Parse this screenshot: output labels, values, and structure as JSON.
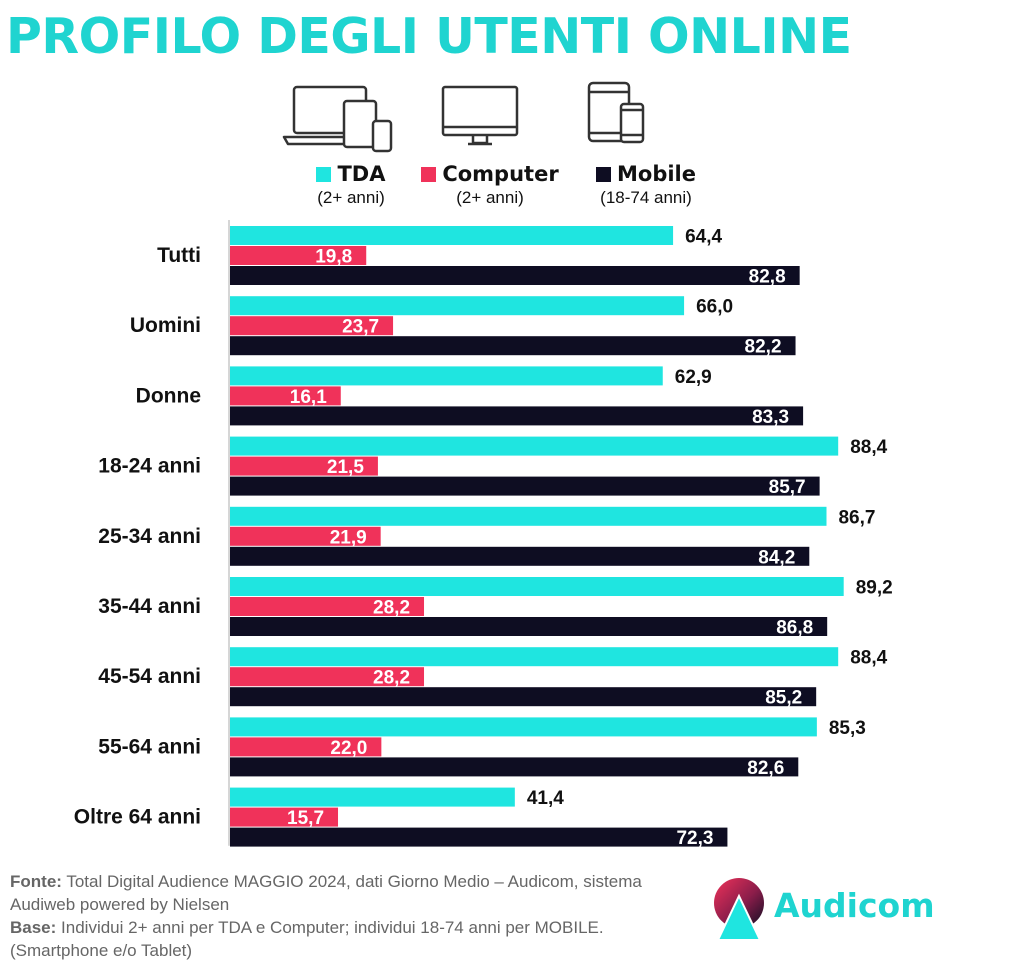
{
  "title": "PROFILO DEGLI UTENTI ONLINE",
  "icons": [
    "devices-icon",
    "computer-monitor-icon",
    "mobile-devices-icon"
  ],
  "colors": {
    "tda": "#1fe5e0",
    "computer": "#f0325a",
    "mobile": "#0e0d22",
    "title": "#1fd4d0"
  },
  "legend": [
    {
      "name": "TDA",
      "sub": "(2+ anni)"
    },
    {
      "name": "Computer",
      "sub": "(2+ anni)"
    },
    {
      "name": "Mobile",
      "sub": "(18-74 anni)"
    }
  ],
  "chart_data": {
    "type": "bar",
    "orientation": "horizontal",
    "categories": [
      "Tutti",
      "Uomini",
      "Donne",
      "18-24 anni",
      "25-34 anni",
      "35-44 anni",
      "45-54 anni",
      "55-64 anni",
      "Oltre 64 anni"
    ],
    "series": [
      {
        "name": "TDA",
        "labels": [
          "64,4",
          "66,0",
          "62,9",
          "88,4",
          "86,7",
          "89,2",
          "88,4",
          "85,3",
          "41,4"
        ],
        "values": [
          64.4,
          66.0,
          62.9,
          88.4,
          86.7,
          89.2,
          88.4,
          85.3,
          41.4
        ]
      },
      {
        "name": "Computer",
        "labels": [
          "19,8",
          "23,7",
          "16,1",
          "21,5",
          "21,9",
          "28,2",
          "28,2",
          "22,0",
          "15,7"
        ],
        "values": [
          19.8,
          23.7,
          16.1,
          21.5,
          21.9,
          28.2,
          28.2,
          22.0,
          15.7
        ]
      },
      {
        "name": "Mobile",
        "labels": [
          "82,8",
          "82,2",
          "83,3",
          "85,7",
          "84,2",
          "86,8",
          "85,2",
          "82,6",
          "72,3"
        ],
        "values": [
          82.8,
          82.2,
          83.3,
          85.7,
          84.2,
          86.8,
          85.2,
          82.6,
          72.3
        ]
      }
    ],
    "xlim": [
      0,
      100
    ],
    "grid": false
  },
  "footer": {
    "fonte_label": "Fonte:",
    "fonte_text": " Total Digital Audience MAGGIO 2024, dati Giorno Medio – Audicom, sistema Audiweb powered by Nielsen",
    "base_label": "Base:",
    "base_text": "  Individui 2+ anni per TDA e Computer; individui 18-74 anni per MOBILE.(Smartphone e/o Tablet)"
  },
  "brand": {
    "name": "Audicom",
    "icon": "audicom-logo-icon"
  }
}
